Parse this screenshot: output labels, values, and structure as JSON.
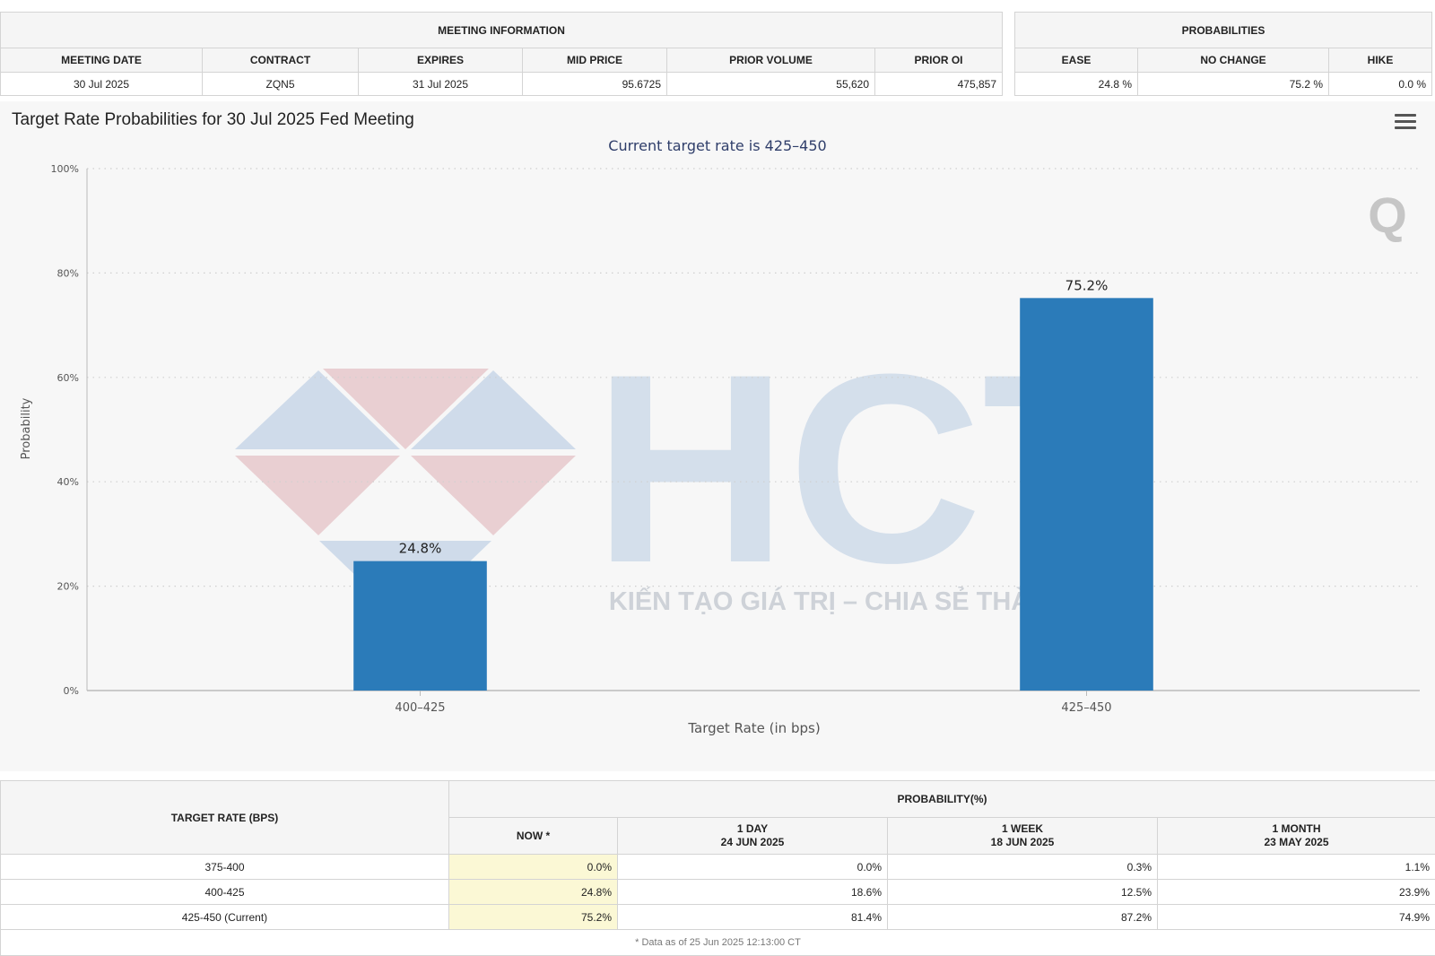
{
  "meeting_info": {
    "title": "MEETING INFORMATION",
    "headers": [
      "MEETING DATE",
      "CONTRACT",
      "EXPIRES",
      "MID PRICE",
      "PRIOR VOLUME",
      "PRIOR OI"
    ],
    "row": [
      "30 Jul 2025",
      "ZQN5",
      "31 Jul 2025",
      "95.6725",
      "55,620",
      "475,857"
    ]
  },
  "probabilities": {
    "title": "PROBABILITIES",
    "headers": [
      "EASE",
      "NO CHANGE",
      "HIKE"
    ],
    "row": [
      "24.8 %",
      "75.2 %",
      "0.0 %"
    ]
  },
  "chart_data": {
    "type": "bar",
    "title": "Target Rate Probabilities for 30 Jul 2025 Fed Meeting",
    "subtitle": "Current target rate is 425–450",
    "categories": [
      "400–425",
      "425–450"
    ],
    "values": [
      24.8,
      75.2
    ],
    "data_labels": [
      "24.8%",
      "75.2%"
    ],
    "xlabel": "Target Rate (in bps)",
    "ylabel": "Probability",
    "ylim": [
      0,
      100
    ],
    "yticks": [
      0,
      20,
      40,
      60,
      80,
      100
    ],
    "ytick_labels": [
      "0%",
      "20%",
      "40%",
      "60%",
      "80%",
      "100%"
    ],
    "grid": true,
    "bar_color": "#2b7bb9"
  },
  "watermark": {
    "text": "KIẾN TẠO GIÁ TRỊ – CHIA SẺ THÀNH CÔNG",
    "logo_letters": "HCT"
  },
  "rates_table": {
    "target_header": "TARGET RATE (BPS)",
    "prob_header": "PROBABILITY(%)",
    "columns": [
      {
        "line1": "NOW *",
        "line2": ""
      },
      {
        "line1": "1 DAY",
        "line2": "24 JUN 2025"
      },
      {
        "line1": "1 WEEK",
        "line2": "18 JUN 2025"
      },
      {
        "line1": "1 MONTH",
        "line2": "23 MAY 2025"
      }
    ],
    "rows": [
      {
        "rate": "375-400",
        "values": [
          "0.0%",
          "0.0%",
          "0.3%",
          "1.1%"
        ]
      },
      {
        "rate": "400-425",
        "values": [
          "24.8%",
          "18.6%",
          "12.5%",
          "23.9%"
        ]
      },
      {
        "rate": "425-450 (Current)",
        "values": [
          "75.2%",
          "81.4%",
          "87.2%",
          "74.9%"
        ]
      }
    ],
    "footnote": "* Data as of 25 Jun 2025 12:13:00 CT"
  }
}
